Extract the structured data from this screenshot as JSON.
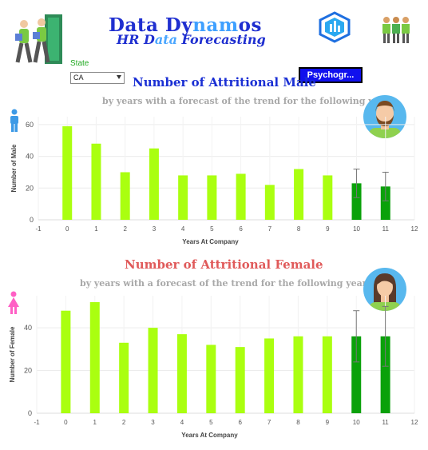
{
  "header": {
    "brand_part1": "Data Dy",
    "brand_part2": "nam",
    "brand_part3": "os",
    "subtitle_part1": "HR D",
    "subtitle_part2": "ata",
    "subtitle_part3": " Forecasting"
  },
  "filter": {
    "label": "State",
    "value": "CA"
  },
  "psychographics_button": "Psychogr...",
  "colors": {
    "actual_bar": "#aaff10",
    "forecast_bar": "#0aa10a",
    "male_title": "#1a2fd4",
    "female_title": "#e05a5a",
    "subtitle": "#a8a8a8",
    "male_icon": "#3d9ae6",
    "female_icon": "#ff5fc5"
  },
  "icons": [
    "workers-walking-icon",
    "data-dynamos-logo-icon",
    "team-people-icon",
    "male-person-icon",
    "female-person-icon",
    "male-avatar-icon",
    "female-avatar-icon"
  ],
  "chart_data": [
    {
      "type": "bar",
      "title": "Number of Attritional Male",
      "subtitle": "by years with a forecast of the trend for the following year",
      "xlabel": "Years At Company",
      "ylabel": "Number of Male",
      "xlim": [
        -1,
        12
      ],
      "ylim": [
        0,
        65
      ],
      "x_ticks": [
        "-1",
        "0",
        "1",
        "2",
        "3",
        "4",
        "5",
        "6",
        "7",
        "8",
        "9",
        "10",
        "11",
        "12"
      ],
      "y_ticks": [
        "0",
        "20",
        "40",
        "60"
      ],
      "grid": true,
      "x": [
        0,
        1,
        2,
        3,
        4,
        5,
        6,
        7,
        8,
        9
      ],
      "values": [
        59,
        48,
        30,
        45,
        28,
        28,
        29,
        22,
        32,
        28
      ],
      "forecast": {
        "x": [
          10,
          11
        ],
        "values": [
          23,
          21
        ],
        "upper": [
          32,
          30
        ],
        "lower": [
          14,
          12
        ]
      }
    },
    {
      "type": "bar",
      "title": "Number of Attritional Female",
      "subtitle": "by years with a forecast of the trend for the following year",
      "xlabel": "Years At Company",
      "ylabel": "Number of Female",
      "xlim": [
        -1,
        12
      ],
      "ylim": [
        0,
        55
      ],
      "x_ticks": [
        "-1",
        "0",
        "1",
        "2",
        "3",
        "4",
        "5",
        "6",
        "7",
        "8",
        "9",
        "10",
        "11",
        "12"
      ],
      "y_ticks": [
        "0",
        "20",
        "40"
      ],
      "grid": true,
      "x": [
        0,
        1,
        2,
        3,
        4,
        5,
        6,
        7,
        8,
        9
      ],
      "values": [
        48,
        52,
        33,
        40,
        37,
        32,
        31,
        35,
        36,
        36
      ],
      "forecast": {
        "x": [
          10,
          11
        ],
        "values": [
          36,
          36
        ],
        "upper": [
          48,
          50
        ],
        "lower": [
          24,
          22
        ]
      }
    }
  ]
}
